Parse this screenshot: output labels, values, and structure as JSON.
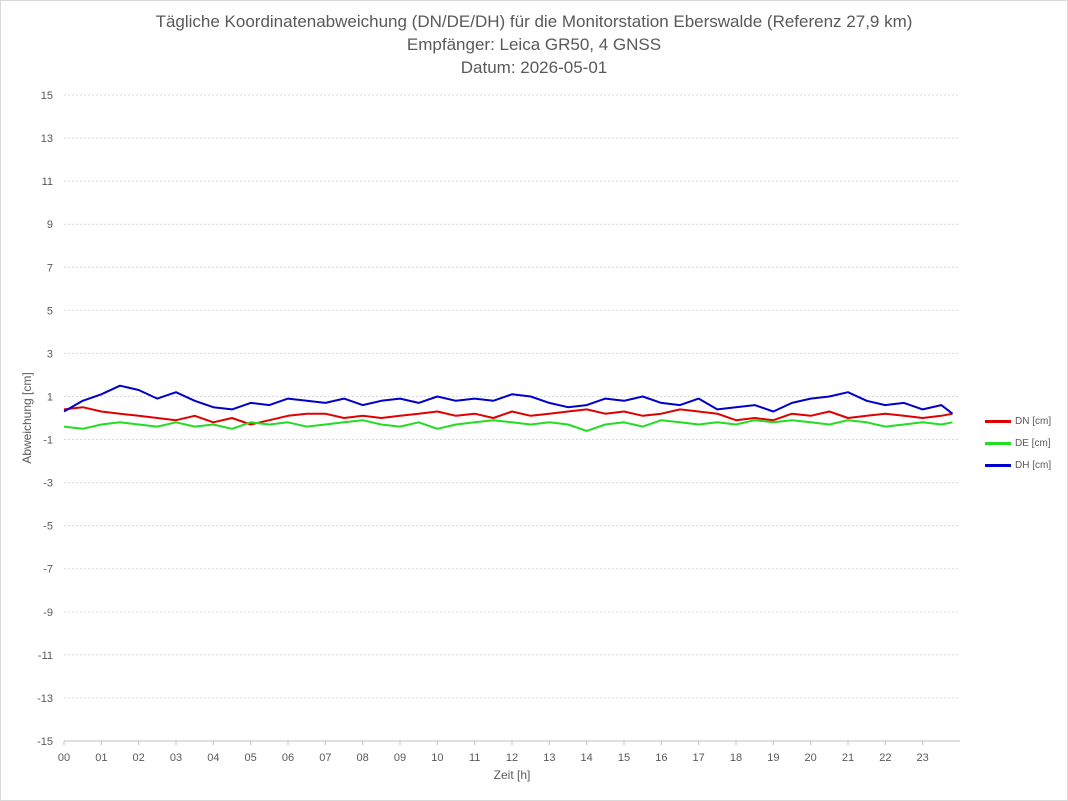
{
  "chart_data": {
    "type": "line",
    "title_lines": [
      "Tägliche Koordinatenabweichung (DN/DE/DH) für die Monitorstation Eberswalde (Referenz 27,9 km)",
      "Empfänger: Leica GR50, 4 GNSS",
      "Datum: 2026-05-01"
    ],
    "xlabel": "Zeit [h]",
    "ylabel": "Abweichung [cm]",
    "x_tick_labels": [
      "00",
      "01",
      "02",
      "03",
      "04",
      "05",
      "06",
      "07",
      "08",
      "09",
      "10",
      "11",
      "12",
      "13",
      "14",
      "15",
      "16",
      "17",
      "18",
      "19",
      "20",
      "21",
      "22",
      "23"
    ],
    "xlim": [
      0,
      24
    ],
    "ylim": [
      -15,
      15
    ],
    "y_ticks": [
      15,
      13,
      11,
      9,
      7,
      5,
      3,
      1,
      -1,
      -3,
      -5,
      -7,
      -9,
      -11,
      -13,
      -15
    ],
    "grid": true,
    "legend_position": "right",
    "x": [
      0,
      0.5,
      1,
      1.5,
      2,
      2.5,
      3,
      3.5,
      4,
      4.5,
      5,
      5.5,
      6,
      6.5,
      7,
      7.5,
      8,
      8.5,
      9,
      9.5,
      10,
      10.5,
      11,
      11.5,
      12,
      12.5,
      13,
      13.5,
      14,
      14.5,
      15,
      15.5,
      16,
      16.5,
      17,
      17.5,
      18,
      18.5,
      19,
      19.5,
      20,
      20.5,
      21,
      21.5,
      22,
      22.5,
      23,
      23.5,
      23.8
    ],
    "series": [
      {
        "name": "DN [cm]",
        "color": "#e00000",
        "values": [
          0.4,
          0.5,
          0.3,
          0.2,
          0.1,
          0.0,
          -0.1,
          0.1,
          -0.2,
          0.0,
          -0.3,
          -0.1,
          0.1,
          0.2,
          0.2,
          0.0,
          0.1,
          0.0,
          0.1,
          0.2,
          0.3,
          0.1,
          0.2,
          0.0,
          0.3,
          0.1,
          0.2,
          0.3,
          0.4,
          0.2,
          0.3,
          0.1,
          0.2,
          0.4,
          0.3,
          0.2,
          -0.1,
          0.0,
          -0.1,
          0.2,
          0.1,
          0.3,
          0.0,
          0.1,
          0.2,
          0.1,
          0.0,
          0.1,
          0.2
        ]
      },
      {
        "name": "DE [cm]",
        "color": "#22dd22",
        "values": [
          -0.4,
          -0.5,
          -0.3,
          -0.2,
          -0.3,
          -0.4,
          -0.2,
          -0.4,
          -0.3,
          -0.5,
          -0.2,
          -0.3,
          -0.2,
          -0.4,
          -0.3,
          -0.2,
          -0.1,
          -0.3,
          -0.4,
          -0.2,
          -0.5,
          -0.3,
          -0.2,
          -0.1,
          -0.2,
          -0.3,
          -0.2,
          -0.3,
          -0.6,
          -0.3,
          -0.2,
          -0.4,
          -0.1,
          -0.2,
          -0.3,
          -0.2,
          -0.3,
          -0.1,
          -0.2,
          -0.1,
          -0.2,
          -0.3,
          -0.1,
          -0.2,
          -0.4,
          -0.3,
          -0.2,
          -0.3,
          -0.2
        ]
      },
      {
        "name": "DH [cm]",
        "color": "#0000cc",
        "values": [
          0.3,
          0.8,
          1.1,
          1.5,
          1.3,
          0.9,
          1.2,
          0.8,
          0.5,
          0.4,
          0.7,
          0.6,
          0.9,
          0.8,
          0.7,
          0.9,
          0.6,
          0.8,
          0.9,
          0.7,
          1.0,
          0.8,
          0.9,
          0.8,
          1.1,
          1.0,
          0.7,
          0.5,
          0.6,
          0.9,
          0.8,
          1.0,
          0.7,
          0.6,
          0.9,
          0.4,
          0.5,
          0.6,
          0.3,
          0.7,
          0.9,
          1.0,
          1.2,
          0.8,
          0.6,
          0.7,
          0.4,
          0.6,
          0.2
        ]
      }
    ]
  }
}
